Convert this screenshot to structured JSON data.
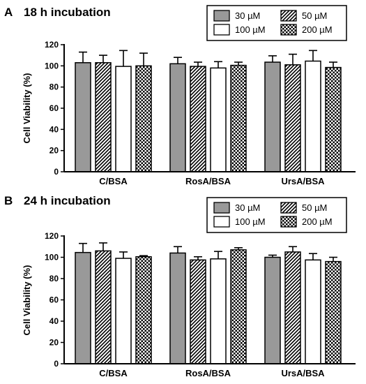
{
  "chart_data": [
    {
      "type": "bar",
      "panel_letter": "A",
      "title": "18 h incubation",
      "ylabel": "Cell Viability (%)",
      "xlabel": "",
      "ylim": [
        0,
        120
      ],
      "yticks": [
        0,
        20,
        40,
        60,
        80,
        100,
        120
      ],
      "categories": [
        "C/BSA",
        "RosA/BSA",
        "UrsA/BSA"
      ],
      "legend_position": "top-right",
      "grid": false,
      "series": [
        {
          "name": "30 µM",
          "pattern": "solid-gray",
          "values": [
            103,
            102,
            103.5
          ],
          "errors": [
            10,
            6,
            6
          ]
        },
        {
          "name": "50 µM",
          "pattern": "diagonal-hatch",
          "values": [
            103,
            99.5,
            101
          ],
          "errors": [
            7,
            4,
            10
          ]
        },
        {
          "name": "100 µM",
          "pattern": "white",
          "values": [
            99.5,
            98,
            104.5
          ],
          "errors": [
            15,
            6,
            10
          ]
        },
        {
          "name": "200 µM",
          "pattern": "checker",
          "values": [
            100,
            100.5,
            98.5
          ],
          "errors": [
            12,
            3,
            5
          ]
        }
      ]
    },
    {
      "type": "bar",
      "panel_letter": "B",
      "title": "24 h incubation",
      "ylabel": "Cell Viability (%)",
      "xlabel": "",
      "ylim": [
        0,
        120
      ],
      "yticks": [
        0,
        20,
        40,
        60,
        80,
        100,
        120
      ],
      "categories": [
        "C/BSA",
        "RosA/BSA",
        "UrsA/BSA"
      ],
      "legend_position": "top-right",
      "grid": false,
      "series": [
        {
          "name": "30 µM",
          "pattern": "solid-gray",
          "values": [
            104.5,
            104,
            100
          ],
          "errors": [
            8.5,
            6,
            2
          ]
        },
        {
          "name": "50 µM",
          "pattern": "diagonal-hatch",
          "values": [
            106,
            97.5,
            105
          ],
          "errors": [
            7.5,
            3,
            5
          ]
        },
        {
          "name": "100 µM",
          "pattern": "white",
          "values": [
            99,
            98.5,
            97.5
          ],
          "errors": [
            6,
            7,
            6
          ]
        },
        {
          "name": "200 µM",
          "pattern": "checker",
          "values": [
            100.5,
            107,
            96
          ],
          "errors": [
            1,
            2,
            4
          ]
        }
      ]
    }
  ],
  "colors": {
    "solid": "#999999",
    "ink": "#000000",
    "paper": "#ffffff"
  }
}
